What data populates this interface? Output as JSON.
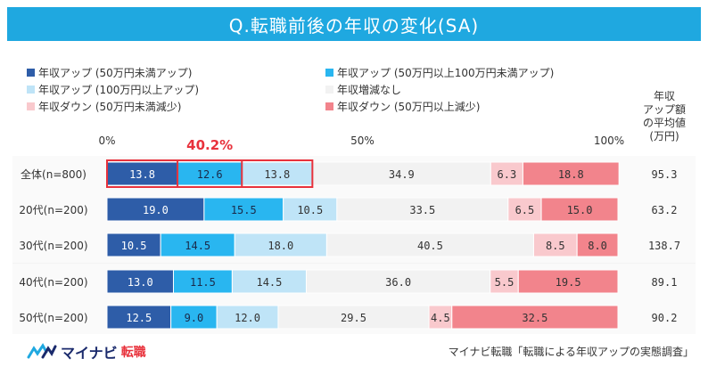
{
  "title": "Q.転職前後の年収の変化(SA)",
  "avg_header": "年収アップ額の平均値(万円)",
  "highlight_label": "40.2%",
  "axis_ticks": [
    "0%",
    "50%",
    "100%"
  ],
  "legend": [
    {
      "label": "年収アップ (50万円未満アップ)",
      "color": "#2e5da8"
    },
    {
      "label": "年収アップ (50万円以上100万円未満アップ)",
      "color": "#29b6f0"
    },
    {
      "label": "年収アップ (100万円以上アップ)",
      "color": "#bfe4f7"
    },
    {
      "label": "年収増減なし",
      "color": "#f2f2f2"
    },
    {
      "label": "年収ダウン (50万円未満減少)",
      "color": "#f9c9cd"
    },
    {
      "label": "年収ダウン (50万円以上減少)",
      "color": "#f2848c"
    }
  ],
  "chart_data": {
    "type": "bar",
    "orientation": "horizontal",
    "stacked": true,
    "title": "Q.転職前後の年収の変化(SA)",
    "xlim": [
      0,
      100
    ],
    "categories": [
      "全体(n=800)",
      "20代(n=200)",
      "30代(n=200)",
      "40代(n=200)",
      "50代(n=200)"
    ],
    "series": [
      {
        "name": "年収アップ (50万円未満アップ)",
        "values": [
          13.8,
          19.0,
          10.5,
          13.0,
          12.5
        ]
      },
      {
        "name": "年収アップ (50万円以上100万円未満アップ)",
        "values": [
          12.6,
          15.5,
          14.5,
          11.5,
          9.0
        ]
      },
      {
        "name": "年収アップ (100万円以上アップ)",
        "values": [
          13.8,
          10.5,
          18.0,
          14.5,
          12.0
        ]
      },
      {
        "name": "年収増減なし",
        "values": [
          34.9,
          33.5,
          40.5,
          36.0,
          29.5
        ]
      },
      {
        "name": "年収ダウン (50万円未満減少)",
        "values": [
          6.3,
          6.5,
          8.5,
          5.5,
          4.5
        ]
      },
      {
        "name": "年収ダウン (50万円以上減少)",
        "values": [
          18.8,
          15.0,
          8.0,
          19.5,
          32.5
        ]
      }
    ],
    "averages": [
      "95.3",
      "63.2",
      "138.7",
      "89.1",
      "90.2"
    ]
  },
  "footer": {
    "logo_text": "マイナビ",
    "logo_sub": "転職",
    "source": "マイナビ転職「転職による年収アップの実態調査」"
  }
}
